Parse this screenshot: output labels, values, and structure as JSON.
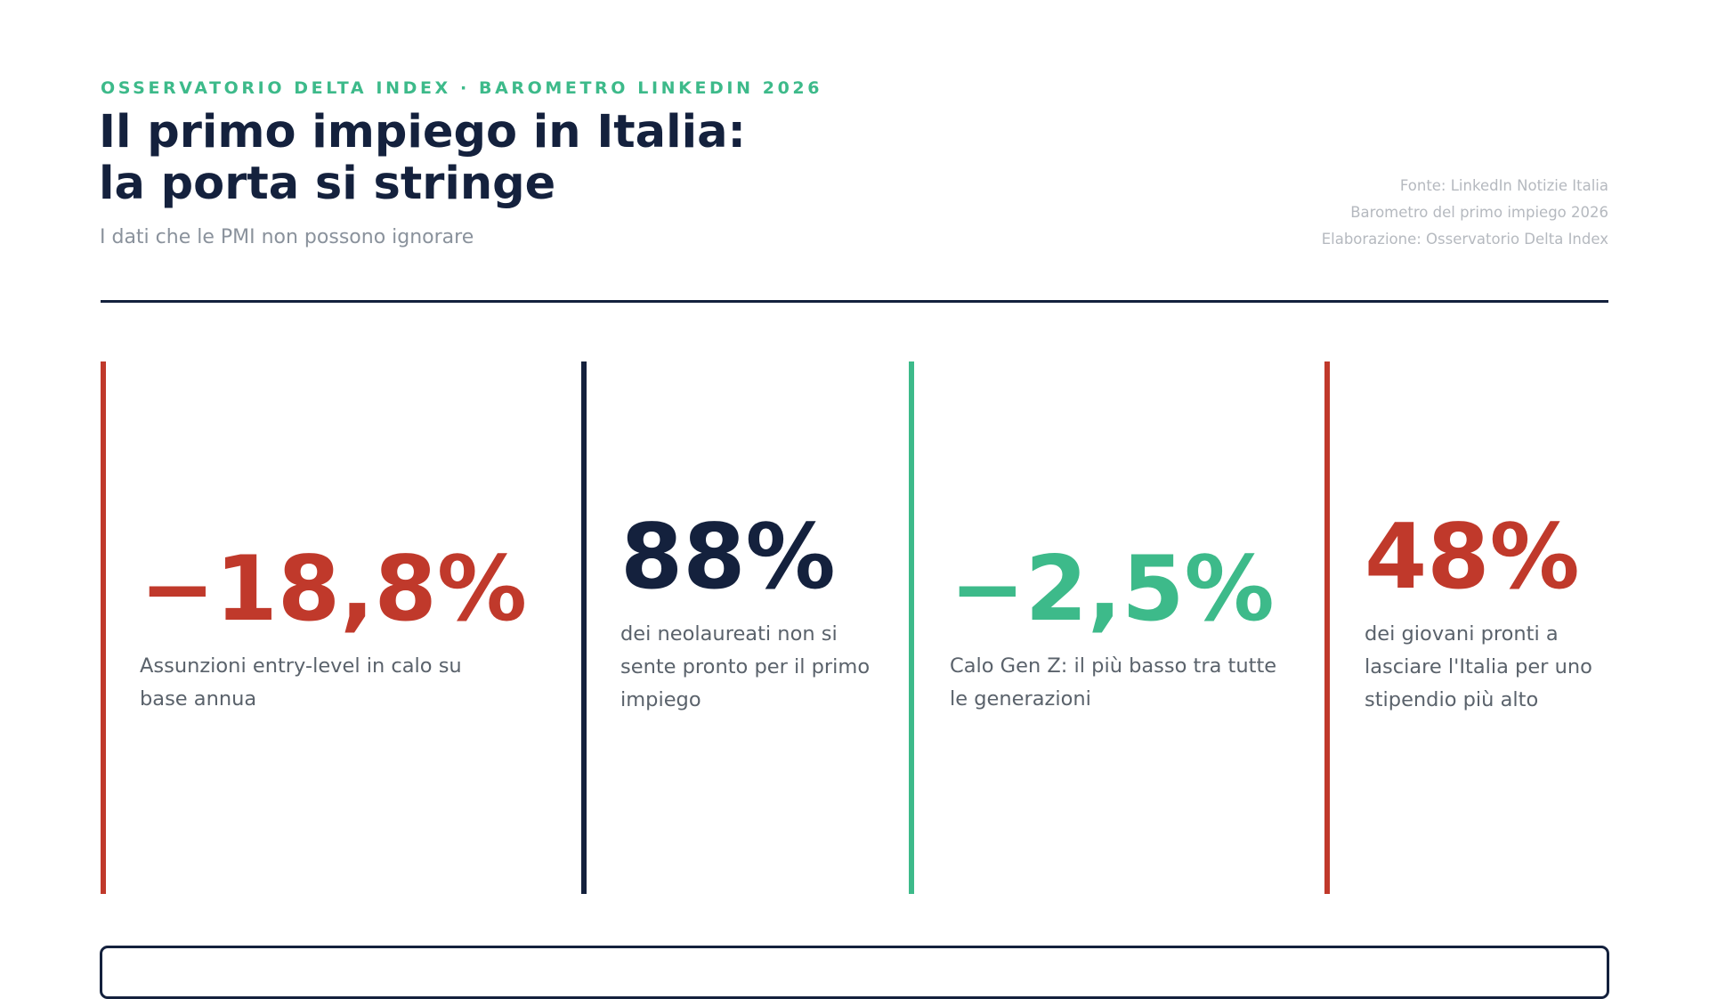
{
  "header": {
    "eyebrow": "OSSERVATORIO DELTA INDEX · BAROMETRO LINKEDIN 2026",
    "title_line1": "Il primo impiego in Italia:",
    "title_line2": "la porta si stringe",
    "subtitle": "I dati che le PMI non possono ignorare",
    "source": [
      "Fonte: LinkedIn Notizie Italia",
      "Barometro del primo impiego 2026",
      "Elaborazione: Osservatorio Delta Index"
    ]
  },
  "colors": {
    "red": "#c0392b",
    "navy": "#14213d",
    "green": "#3dba8a"
  },
  "stats": [
    {
      "value": "−18,8%",
      "desc": "Assunzioni entry-level in calo su base annua",
      "color": "#c0392b"
    },
    {
      "value": "88%",
      "desc": "dei neolaureati non si sente pronto per il primo impiego",
      "color": "#14213d"
    },
    {
      "value": "−2,5%",
      "desc": "Calo Gen Z: il più basso tra tutte le generazioni",
      "color": "#3dba8a"
    },
    {
      "value": "48%",
      "desc": "dei giovani pronti a lasciare l'Italia per uno stipendio più alto",
      "color": "#c0392b"
    }
  ]
}
